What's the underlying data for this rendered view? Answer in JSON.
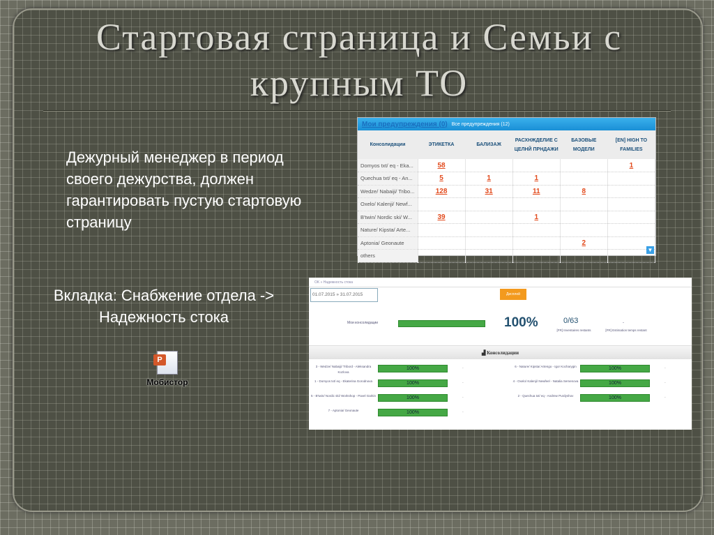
{
  "slide": {
    "title": "Стартовая страница и Семьи с крупным ТО",
    "text1": "Дежурный менеджер в период своего дежурства, должен гарантировать пустую стартовую страницу",
    "text2": "Вкладка: Снабжение отдела -> Надежность стока",
    "attachment": {
      "icon": "powerpoint-file-icon",
      "label": "Мобистор"
    }
  },
  "alerts": {
    "my_alerts": "Мои предупреждения (0)",
    "all_alerts": "Все предупреждения (12)",
    "columns": [
      "Консолидации",
      "ЭТИКЕТКА",
      "БАЛИЗАЖ",
      "РАСХНЖДЕЛИЕ С ЦЕЛНЙ ПРНДАЖИ",
      "БАЗОВЫЕ МОДЕЛИ",
      "[EN] HIGH TO FAMILIES"
    ],
    "rows": [
      [
        "Domyos txt/ eq - Eka...",
        "58",
        "",
        "",
        "",
        "1"
      ],
      [
        "Quechua txt/ eq - An...",
        "5",
        "1",
        "1",
        "",
        ""
      ],
      [
        "Wedze/ Nabaiji/ Tribo...",
        "128",
        "31",
        "11",
        "8",
        ""
      ],
      [
        "Oxelo/ Kalenji/ Newf...",
        "",
        "",
        "",
        "",
        ""
      ],
      [
        "B'twin/ Nordic ski/ W...",
        "39",
        "",
        "1",
        "",
        ""
      ],
      [
        "Nature/ Kipsta/ Arte...",
        "",
        "",
        "",
        "",
        ""
      ],
      [
        "Aptonia/ Geonaute",
        "",
        "",
        "",
        "2",
        ""
      ],
      [
        "others",
        "",
        "",
        "",
        "",
        ""
      ]
    ],
    "accent": "#1a8fd6",
    "value_color": "#e24a1c"
  },
  "reliability": {
    "breadcrumb": "OK » Надежность стока",
    "date_range": "01.07.2015 » 31.07.2015",
    "button": "Дисплей",
    "summary": {
      "label": "Мои консолидации",
      "progress": 100,
      "percent": "100%",
      "fraction": "0/63",
      "fraction_label": "[FR] Inventaires restants",
      "dash": "-",
      "estimation_label": "[FR] Estimation temps restant"
    },
    "section_title": "Консолидации",
    "items_left": [
      {
        "name": "3 - Wedze/ Nabaiji/ Tribord - Aleksandra Kozlova",
        "value": "100%",
        "extra": "-"
      },
      {
        "name": "1 - Domyos txt/ eq - Ekaterina Gorodnova",
        "value": "100%",
        "extra": "-"
      },
      {
        "name": "5 - B'twin/ Nordic ski/ Workshop - Pavel Garkin",
        "value": "100%",
        "extra": "-"
      },
      {
        "name": "7 - Aptonia/ Geonaute",
        "value": "100%",
        "extra": "-"
      }
    ],
    "items_right": [
      {
        "name": "6 - Nature/ Kipsta/ Artengo - Igor Kocharygin",
        "value": "100%",
        "extra": "-"
      },
      {
        "name": "4 - Oxelo/ Kalenji/ Newfeel - Natalia Semenova",
        "value": "100%",
        "extra": "-"
      },
      {
        "name": "2 - Quechua txt/ eq - Andrew Purdyshov",
        "value": "100%",
        "extra": "-"
      }
    ],
    "progress_color": "#45a845"
  }
}
